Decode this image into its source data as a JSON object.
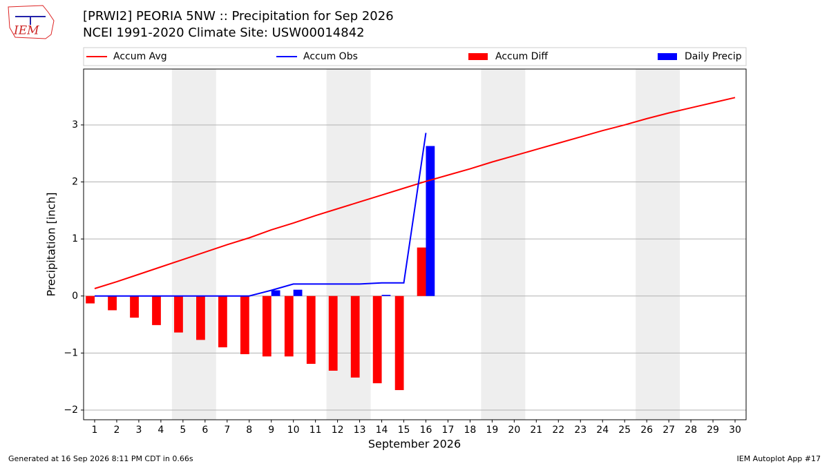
{
  "chart_data": {
    "type": "bar_line",
    "logo_text": "IEM",
    "title": "[PRWI2] PEORIA 5NW :: Precipitation for Sep 2026",
    "subtitle": "NCEI 1991-2020 Climate Site: USW00014842",
    "y_label": "Precipitation [inch]",
    "x_label": "September 2026",
    "footer_left": "Generated at 16 Sep 2026 8:11 PM CDT in 0.66s",
    "footer_right": "IEM Autoplot App #17",
    "x": [
      1,
      2,
      3,
      4,
      5,
      6,
      7,
      8,
      9,
      10,
      11,
      12,
      13,
      14,
      15,
      16,
      17,
      18,
      19,
      20,
      21,
      22,
      23,
      24,
      25,
      26,
      27,
      28,
      29,
      30
    ],
    "xticks": [
      1,
      2,
      3,
      4,
      5,
      6,
      7,
      8,
      9,
      10,
      11,
      12,
      13,
      14,
      15,
      16,
      17,
      18,
      19,
      20,
      21,
      22,
      23,
      24,
      25,
      26,
      27,
      28,
      29,
      30
    ],
    "xlim": [
      0.5,
      30.5
    ],
    "ylim": [
      -2.17,
      3.98
    ],
    "yticks": [
      {
        "value": -2,
        "label": "−2"
      },
      {
        "value": -1,
        "label": "−1"
      },
      0,
      1,
      2,
      3
    ],
    "grid": true,
    "weekend_spans": [
      [
        4.5,
        6.5
      ],
      [
        11.5,
        13.5
      ],
      [
        18.5,
        20.5
      ],
      [
        25.5,
        27.5
      ]
    ],
    "bar_width": 0.4,
    "series": [
      {
        "name": "Accum Avg",
        "kind": "line",
        "color": "#ff0000",
        "values": [
          0.13,
          0.25,
          0.38,
          0.51,
          0.64,
          0.77,
          0.9,
          1.02,
          1.16,
          1.28,
          1.41,
          1.53,
          1.65,
          1.77,
          1.89,
          2.01,
          2.12,
          2.23,
          2.35,
          2.46,
          2.57,
          2.68,
          2.79,
          2.9,
          3.0,
          3.11,
          3.21,
          3.3,
          3.39,
          3.48
        ]
      },
      {
        "name": "Accum Obs",
        "kind": "line",
        "color": "#0000ff",
        "values": [
          0,
          0,
          0,
          0,
          0,
          0,
          0,
          0,
          0.1,
          0.21,
          0.21,
          0.21,
          0.21,
          0.23,
          0.23,
          2.86,
          null,
          null,
          null,
          null,
          null,
          null,
          null,
          null,
          null,
          null,
          null,
          null,
          null,
          null
        ]
      },
      {
        "name": "Accum Diff",
        "kind": "bar",
        "side": "left",
        "color": "#ff0000",
        "values": [
          -0.13,
          -0.25,
          -0.38,
          -0.51,
          -0.64,
          -0.77,
          -0.9,
          -1.02,
          -1.06,
          -1.06,
          -1.19,
          -1.31,
          -1.43,
          -1.53,
          -1.65,
          0.85,
          null,
          null,
          null,
          null,
          null,
          null,
          null,
          null,
          null,
          null,
          null,
          null,
          null,
          null
        ]
      },
      {
        "name": "Daily Precip",
        "kind": "bar",
        "side": "right",
        "color": "#0000ff",
        "values": [
          0,
          0,
          0,
          0,
          0,
          0,
          0,
          0,
          0.1,
          0.11,
          0,
          0,
          0,
          0.02,
          0,
          2.63,
          null,
          null,
          null,
          null,
          null,
          null,
          null,
          null,
          null,
          null,
          null,
          null,
          null,
          null
        ]
      }
    ]
  }
}
